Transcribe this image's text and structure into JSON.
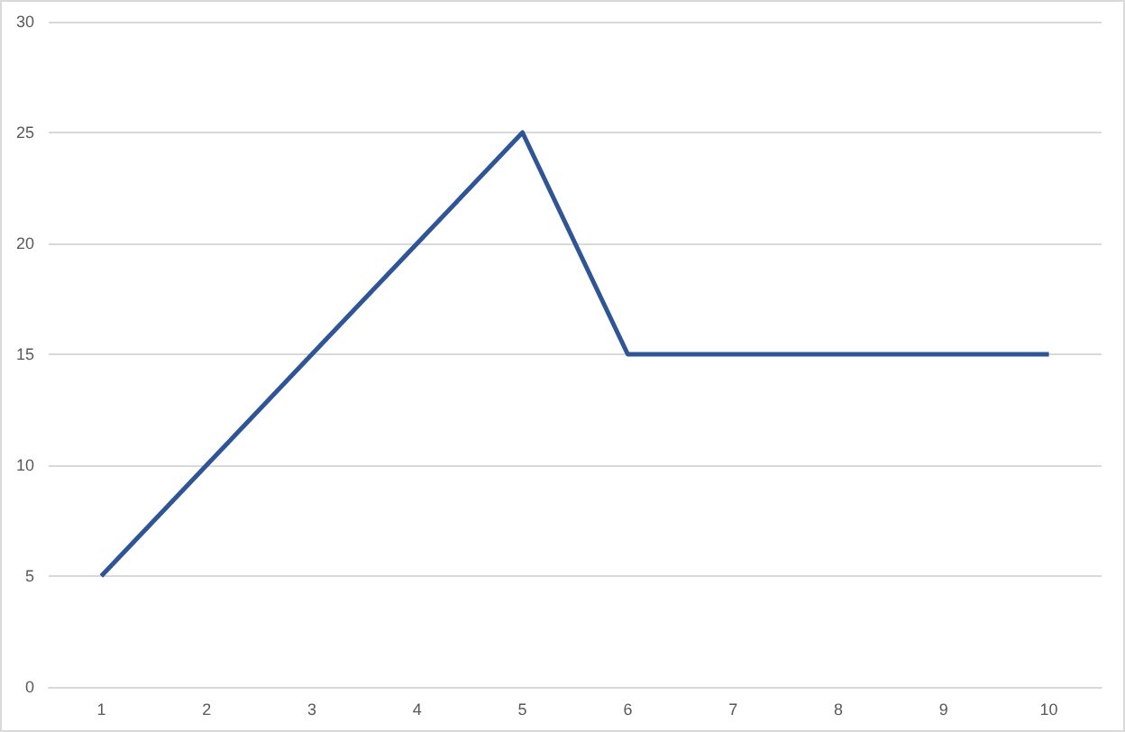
{
  "chart_data": {
    "type": "line",
    "categories": [
      "1",
      "2",
      "3",
      "4",
      "5",
      "6",
      "7",
      "8",
      "9",
      "10"
    ],
    "series": [
      {
        "color": "#2f5597",
        "values": [
          5,
          10,
          15,
          20,
          25,
          15,
          15,
          15,
          15,
          15
        ]
      }
    ],
    "ylim": [
      0,
      30
    ],
    "yticks": [
      0,
      5,
      10,
      15,
      20,
      25,
      30
    ],
    "grid": "y",
    "marker": "none",
    "line_style": "solid"
  }
}
